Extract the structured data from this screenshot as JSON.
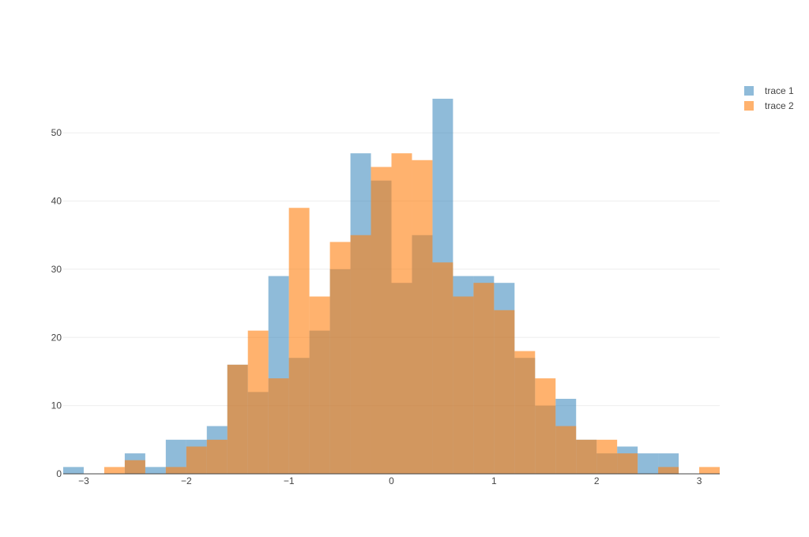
{
  "chart_data": {
    "type": "bar",
    "barmode": "overlay",
    "bin_start": -3.2,
    "bin_width": 0.2,
    "xlim": [
      -3.2,
      3.2
    ],
    "ylim": [
      0,
      57.9
    ],
    "x_ticks": [
      -3,
      -2,
      -1,
      0,
      1,
      2,
      3
    ],
    "x_tick_labels": [
      "−3",
      "−2",
      "−1",
      "0",
      "1",
      "2",
      "3"
    ],
    "y_ticks": [
      0,
      10,
      20,
      30,
      40,
      50
    ],
    "y_tick_labels": [
      "0",
      "10",
      "20",
      "30",
      "40",
      "50"
    ],
    "grid": true,
    "legend_position": "top-right",
    "series": [
      {
        "name": "trace 1",
        "color": "#1f77b4",
        "opacity": 0.5,
        "values": [
          1,
          0,
          0,
          3,
          1,
          5,
          5,
          7,
          16,
          12,
          29,
          17,
          21,
          30,
          47,
          43,
          28,
          35,
          55,
          29,
          29,
          28,
          17,
          10,
          11,
          5,
          3,
          4,
          3,
          3,
          0,
          0
        ]
      },
      {
        "name": "trace 2",
        "color": "#ff7f0e",
        "opacity": 0.6,
        "values": [
          0,
          0,
          1,
          2,
          0,
          1,
          4,
          5,
          16,
          21,
          14,
          39,
          26,
          34,
          35,
          45,
          47,
          46,
          31,
          26,
          28,
          24,
          18,
          14,
          7,
          5,
          5,
          3,
          0,
          1,
          0,
          1
        ]
      }
    ]
  }
}
